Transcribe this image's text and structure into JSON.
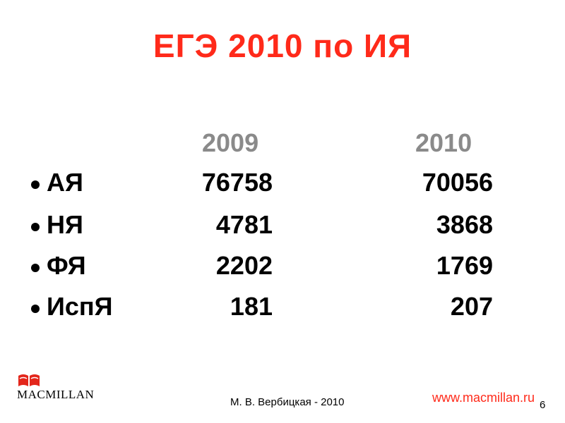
{
  "slide": {
    "title": "ЕГЭ 2010 по ИЯ",
    "years": [
      "2009",
      "2010"
    ],
    "rows": [
      {
        "lang": "АЯ",
        "v2009": "76758",
        "v2010": "70056"
      },
      {
        "lang": "НЯ",
        "v2009": "4781",
        "v2010": "3868"
      },
      {
        "lang": "ФЯ",
        "v2009": "2202",
        "v2010": "1769"
      },
      {
        "lang": "ИспЯ",
        "v2009": "181",
        "v2010": "207"
      }
    ]
  },
  "footer": {
    "publisher": "MACMILLAN",
    "author": "М. В. Вербицкая - 2010",
    "url": "www.macmillan.ru",
    "page": "6"
  },
  "colors": {
    "accent": "#ff2a1a",
    "year": "#8a8a8a",
    "logo": "#e3261b"
  }
}
